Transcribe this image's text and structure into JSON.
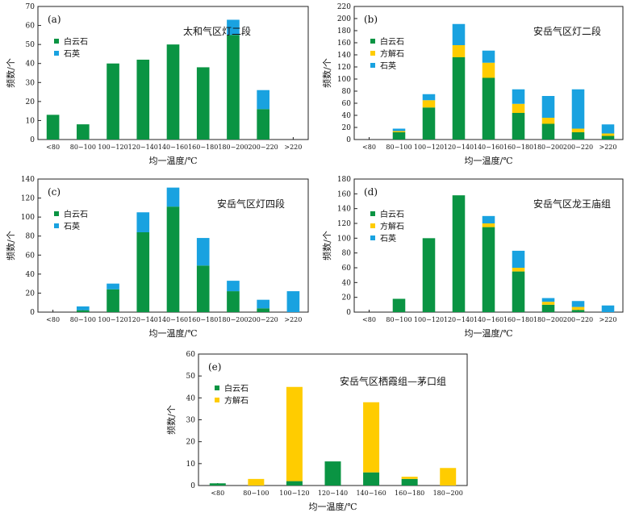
{
  "colors": {
    "白云石": "#0a9443",
    "方解石": "#ffcc00",
    "石英": "#19a2e0"
  },
  "chart_data": [
    {
      "type": "bar",
      "stacked": true,
      "label": "(a)",
      "title": "太和气区灯二段",
      "xlabel": "均一温度/℃",
      "ylabel": "频数/个",
      "ylim": [
        0,
        70
      ],
      "ystep": 10,
      "legend": [
        "白云石",
        "石英"
      ],
      "categories": [
        "<80",
        "80−100",
        "100−120",
        "120−140",
        "140−160",
        "160−180",
        "180−200",
        "200−220",
        ">220"
      ],
      "series": [
        {
          "name": "白云石",
          "values": [
            13,
            8,
            40,
            42,
            50,
            38,
            55,
            16,
            0
          ]
        },
        {
          "name": "石英",
          "values": [
            0,
            0,
            0,
            0,
            0,
            0,
            8,
            10,
            0
          ]
        }
      ]
    },
    {
      "type": "bar",
      "stacked": true,
      "label": "(b)",
      "title": "安岳气区灯二段",
      "xlabel": "均一温度/℃",
      "ylabel": "频数/个",
      "ylim": [
        0,
        220
      ],
      "ystep": 20,
      "legend": [
        "白云石",
        "方解石",
        "石英"
      ],
      "categories": [
        "<80",
        "80−100",
        "100−120",
        "120−140",
        "140−160",
        "160−180",
        "180−200",
        "200−220",
        ">220"
      ],
      "series": [
        {
          "name": "白云石",
          "values": [
            0,
            12,
            53,
            136,
            102,
            44,
            26,
            12,
            6
          ]
        },
        {
          "name": "方解石",
          "values": [
            0,
            2,
            12,
            20,
            25,
            15,
            10,
            6,
            4
          ]
        },
        {
          "name": "石英",
          "values": [
            0,
            4,
            10,
            35,
            20,
            24,
            36,
            65,
            15
          ]
        }
      ]
    },
    {
      "type": "bar",
      "stacked": true,
      "label": "(c)",
      "title": "安岳气区灯四段",
      "xlabel": "均一温度/℃",
      "ylabel": "频数/个",
      "ylim": [
        0,
        140
      ],
      "ystep": 20,
      "legend": [
        "白云石",
        "石英"
      ],
      "categories": [
        "<80",
        "80−100",
        "100−120",
        "120−140",
        "140−160",
        "160−180",
        "180−200",
        "200−220",
        ">220"
      ],
      "series": [
        {
          "name": "白云石",
          "values": [
            0,
            2,
            24,
            84,
            111,
            49,
            22,
            4,
            0
          ]
        },
        {
          "name": "石英",
          "values": [
            0,
            4,
            6,
            21,
            20,
            29,
            11,
            9,
            22
          ]
        }
      ]
    },
    {
      "type": "bar",
      "stacked": true,
      "label": "(d)",
      "title": "安岳气区龙王庙组",
      "xlabel": "均一温度/℃",
      "ylabel": "频数/个",
      "ylim": [
        0,
        180
      ],
      "ystep": 20,
      "legend": [
        "白云石",
        "方解石",
        "石英"
      ],
      "categories": [
        "<80",
        "80−100",
        "100−120",
        "120−140",
        "140−160",
        "160−180",
        "180−200",
        "200−220",
        ">220"
      ],
      "series": [
        {
          "name": "白云石",
          "values": [
            0,
            18,
            100,
            158,
            115,
            55,
            10,
            3,
            0
          ]
        },
        {
          "name": "方解石",
          "values": [
            0,
            0,
            0,
            0,
            5,
            5,
            4,
            4,
            0
          ]
        },
        {
          "name": "石英",
          "values": [
            0,
            0,
            0,
            0,
            10,
            23,
            5,
            8,
            9
          ]
        }
      ]
    },
    {
      "type": "bar",
      "stacked": true,
      "label": "(e)",
      "title": "安岳气区栖霞组—茅口组",
      "xlabel": "均一温度/℃",
      "ylabel": "频数/个",
      "ylim": [
        0,
        60
      ],
      "ystep": 10,
      "legend": [
        "白云石",
        "方解石"
      ],
      "categories": [
        "<80",
        "80−100",
        "100−120",
        "120−140",
        "140−160",
        "160−180",
        "180−200"
      ],
      "series": [
        {
          "name": "白云石",
          "values": [
            1,
            0,
            2,
            11,
            6,
            3,
            0
          ]
        },
        {
          "name": "方解石",
          "values": [
            0,
            3,
            43,
            0,
            32,
            1,
            8
          ]
        }
      ]
    }
  ]
}
